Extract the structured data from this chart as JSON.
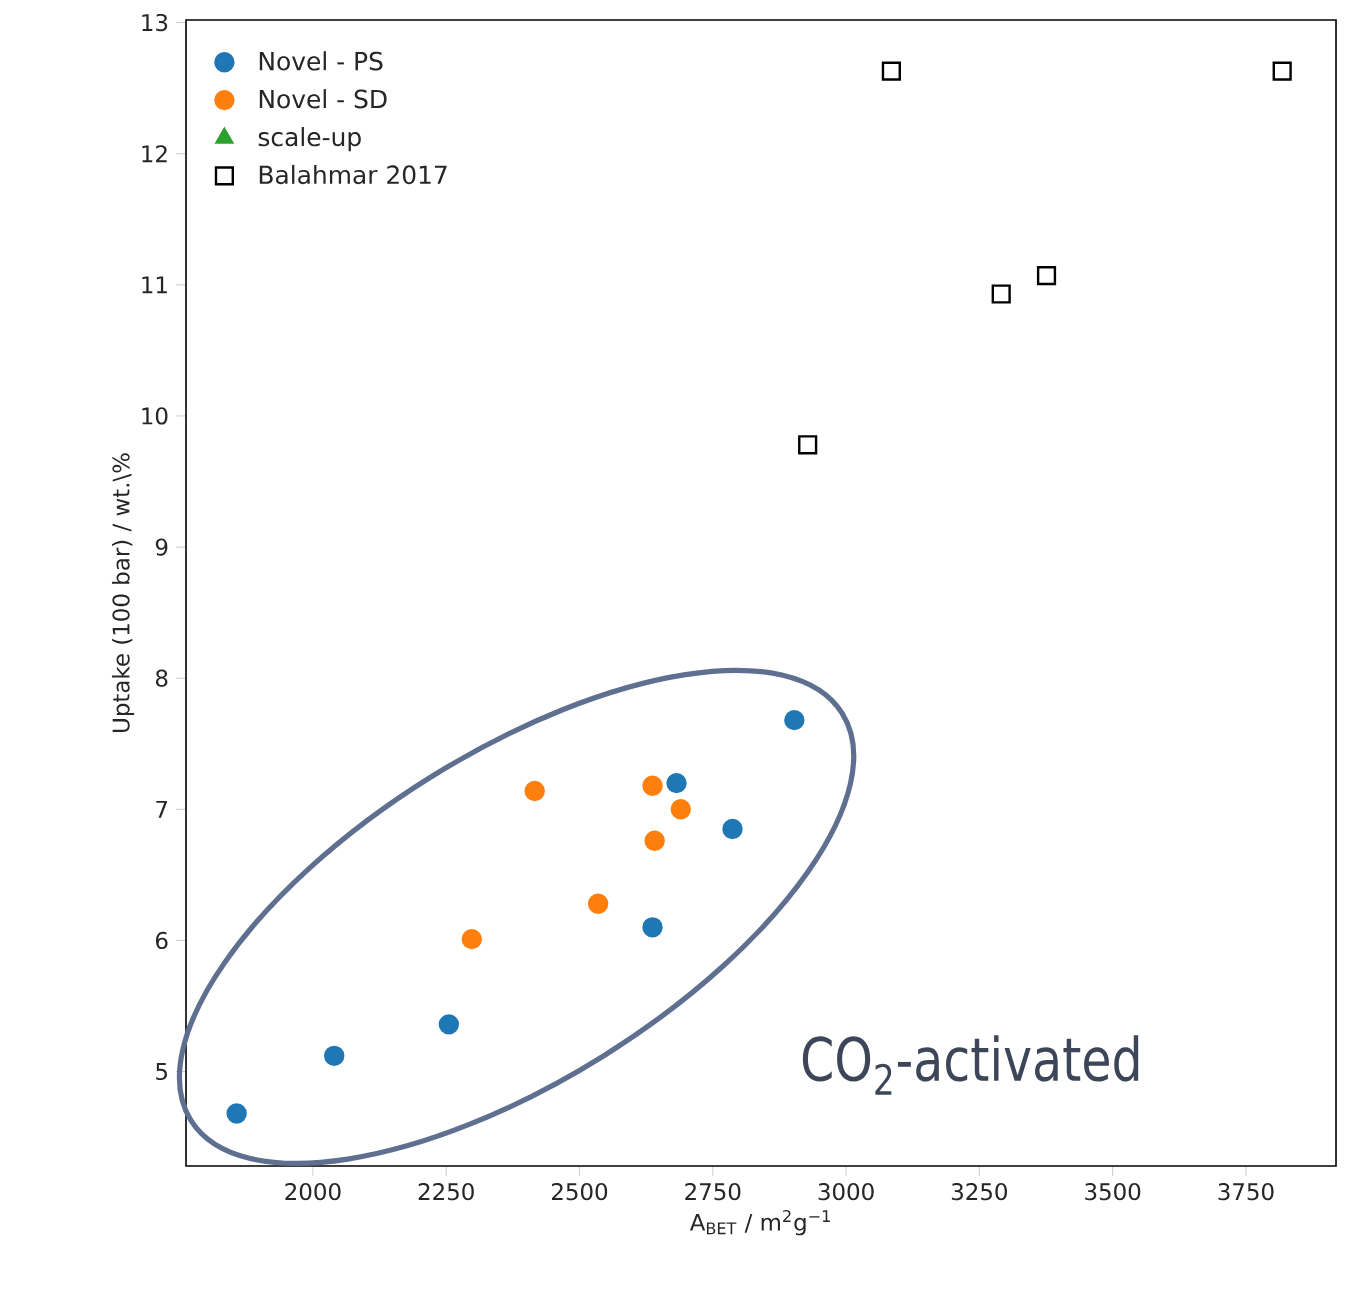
{
  "chart_data": {
    "type": "scatter",
    "xlabel": "A$_{BET}$ / m$^{2}$g$^{−1}$",
    "ylabel": "Uptake (100 bar) / wt.\\%",
    "xlim": [
      1762,
      3919
    ],
    "ylim": [
      4.28,
      13.02
    ],
    "xticks": [
      2000,
      2250,
      2500,
      2750,
      3000,
      3250,
      3500,
      3750
    ],
    "yticks": [
      5,
      6,
      7,
      8,
      9,
      10,
      11,
      12,
      13
    ],
    "grid": false,
    "legend": "top left",
    "annotations": [
      "CO$_{2}$-activated"
    ],
    "series": [
      {
        "name": "Novel - PS",
        "color": "#1f77b4",
        "marker": "circle",
        "x": [
          1857,
          2040,
          2255,
          2637,
          2682,
          2787,
          2903
        ],
        "values": [
          4.68,
          5.12,
          5.36,
          6.1,
          7.2,
          6.85,
          7.68
        ]
      },
      {
        "name": "Novel - SD",
        "color": "#ff7f0e",
        "marker": "circle",
        "x": [
          2298,
          2416,
          2535,
          2637,
          2641,
          2690
        ],
        "values": [
          6.01,
          7.14,
          6.28,
          7.18,
          6.76,
          7.0
        ]
      },
      {
        "name": "scale-up",
        "color": "#2ca02c",
        "marker": "triangle"
      },
      {
        "name": "Balahmar 2017",
        "color": "#000000",
        "marker": "square",
        "x": [
          3085,
          3818,
          3291,
          3376,
          2928
        ],
        "values": [
          12.63,
          12.63,
          10.93,
          11.07,
          9.78
        ]
      }
    ]
  }
}
